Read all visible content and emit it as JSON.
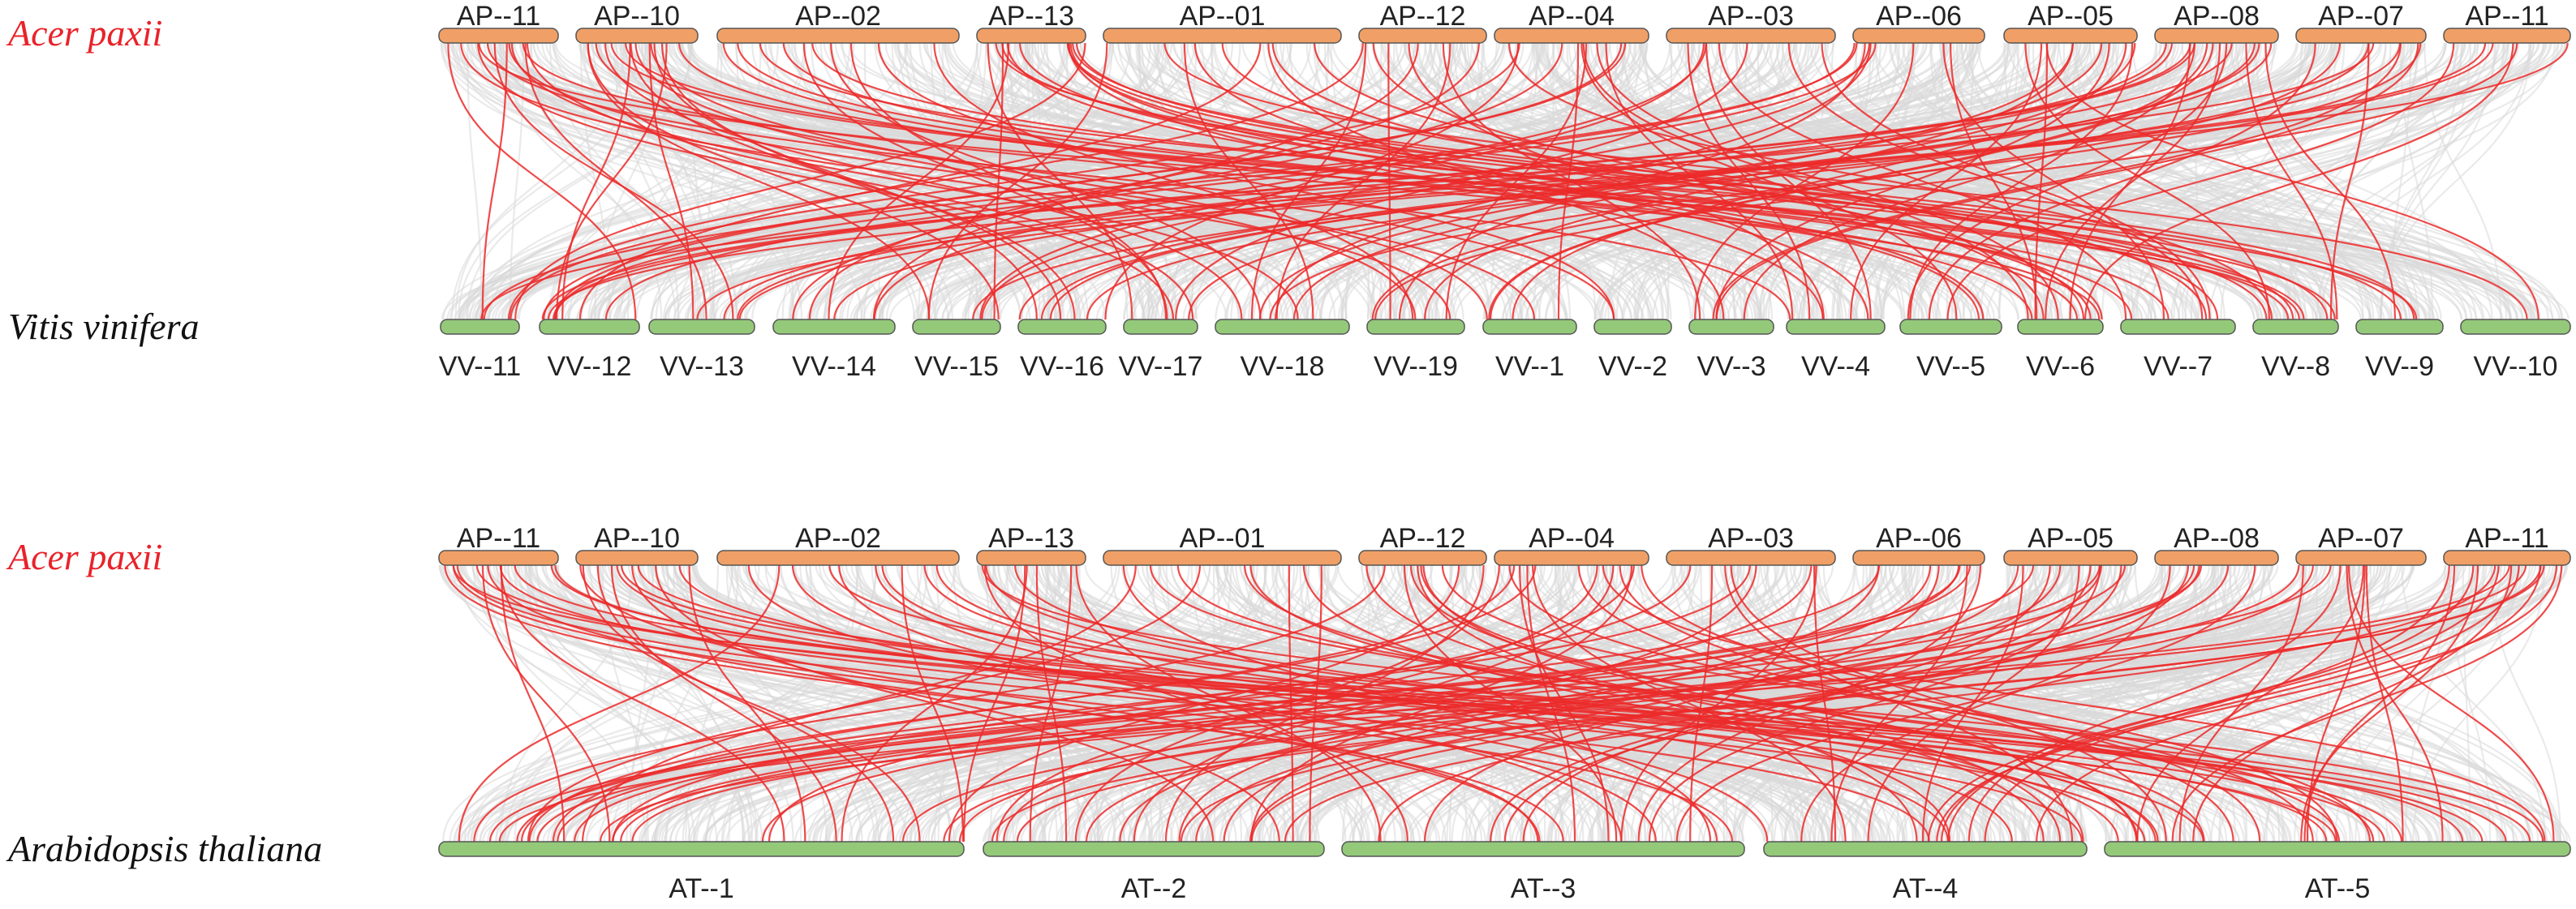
{
  "figure": {
    "panels": [
      {
        "id": "ap-vv",
        "top_species": "Acer paxii",
        "bottom_species": "Vitis vinifera",
        "top_chromosomes": [
          "AP--11",
          "AP--10",
          "AP--02",
          "AP--13",
          "AP--01",
          "AP--12",
          "AP--04",
          "AP--03",
          "AP--06",
          "AP--05",
          "AP--08",
          "AP--07",
          "AP--11"
        ],
        "bottom_chromosomes": [
          "VV--11",
          "VV--12",
          "VV--13",
          "VV--14",
          "VV--15",
          "VV--16",
          "VV--17",
          "VV--18",
          "VV--19",
          "VV--1",
          "VV--2",
          "VV--3",
          "VV--4",
          "VV--5",
          "VV--6",
          "VV--7",
          "VV--8",
          "VV--9",
          "VV--10"
        ]
      },
      {
        "id": "ap-at",
        "top_species": "Acer paxii",
        "bottom_species": "Arabidopsis thaliana",
        "top_chromosomes": [
          "AP--11",
          "AP--10",
          "AP--02",
          "AP--13",
          "AP--01",
          "AP--12",
          "AP--04",
          "AP--03",
          "AP--06",
          "AP--05",
          "AP--08",
          "AP--07",
          "AP--11"
        ],
        "bottom_chromosomes": [
          "AT--1",
          "AT--2",
          "AT--3",
          "AT--4",
          "AT--5"
        ]
      }
    ]
  },
  "colors": {
    "top_species_label": "#e8232a",
    "bottom_species_label": "#111111",
    "top_bar": "#f0a066",
    "bottom_bar": "#94c97a",
    "background_link": "#d9d9d9",
    "highlight_link": "#ec2a2a"
  }
}
